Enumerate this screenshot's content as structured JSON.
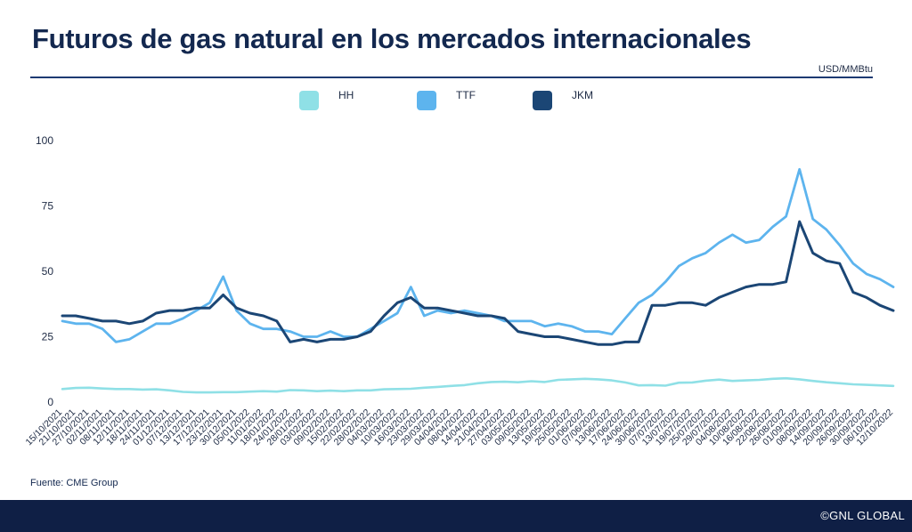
{
  "header": {
    "title": "Futuros de gas natural en los mercados internacionales",
    "unit": "USD/MMBtu"
  },
  "source": "Fuente: CME Group",
  "footer": {
    "copyright": "©GNL GLOBAL"
  },
  "colors": {
    "HH": "#8fe0e6",
    "TTF": "#5db4ee",
    "JKM": "#1b4675",
    "title": "#13284f",
    "footer": "#0f1f45"
  },
  "chart_data": {
    "type": "line",
    "title": "Futuros de gas natural en los mercados internacionales",
    "xlabel": "",
    "ylabel": "USD/MMBtu",
    "ylim": [
      0,
      100
    ],
    "yticks": [
      0,
      25,
      50,
      75,
      100
    ],
    "grid": false,
    "legend_position": "top",
    "x_tick_labels": [
      "15/10/2021",
      "21/10/2021",
      "27/10/2021",
      "02/11/2021",
      "08/11/2021",
      "12/11/2021",
      "18/11/2021",
      "24/11/2021",
      "01/12/2021",
      "07/12/2021",
      "13/12/2021",
      "17/12/2021",
      "23/12/2021",
      "30/12/2021",
      "05/01/2022",
      "11/01/2022",
      "18/01/2022",
      "24/01/2022",
      "28/01/2022",
      "03/02/2022",
      "09/02/2022",
      "15/02/2022",
      "22/02/2022",
      "28/02/2022",
      "04/03/2022",
      "10/03/2022",
      "16/03/2022",
      "23/03/2022",
      "29/03/2022",
      "04/04/2022",
      "08/04/2022",
      "14/04/2022",
      "21/04/2022",
      "27/04/2022",
      "03/05/2022",
      "09/05/2022",
      "13/05/2022",
      "19/05/2022",
      "25/05/2022",
      "01/06/2022",
      "07/06/2022",
      "13/06/2022",
      "17/06/2022",
      "24/06/2022",
      "30/06/2022",
      "07/07/2022",
      "13/07/2022",
      "19/07/2022",
      "25/07/2022",
      "29/07/2022",
      "04/08/2022",
      "10/08/2022",
      "16/08/2022",
      "22/08/2022",
      "26/08/2022",
      "01/09/2022",
      "08/09/2022",
      "14/09/2022",
      "20/09/2022",
      "26/09/2022",
      "30/09/2022",
      "06/10/2022",
      "12/10/2022"
    ],
    "x": [
      0,
      2,
      4,
      6,
      8,
      10,
      12,
      14,
      16,
      18,
      20,
      22,
      24,
      26,
      28,
      30,
      32,
      34,
      36,
      38,
      40,
      42,
      44,
      46,
      48,
      50,
      52,
      54,
      56,
      58,
      60,
      62,
      64,
      66,
      68,
      70,
      72,
      74,
      76,
      78,
      80,
      82,
      84,
      86,
      88,
      90,
      92,
      94,
      96,
      98,
      100,
      102,
      104,
      106,
      108,
      110,
      112,
      114,
      116,
      118,
      120,
      122,
      124
    ],
    "series": [
      {
        "name": "HH",
        "values": [
          5.0,
          5.4,
          5.5,
          5.2,
          5.0,
          5.0,
          4.8,
          4.9,
          4.5,
          3.9,
          3.7,
          3.7,
          3.8,
          3.8,
          4.0,
          4.2,
          4.0,
          4.6,
          4.5,
          4.2,
          4.4,
          4.2,
          4.5,
          4.5,
          4.9,
          5.0,
          5.1,
          5.5,
          5.8,
          6.2,
          6.5,
          7.2,
          7.7,
          7.8,
          7.6,
          8.0,
          7.7,
          8.5,
          8.7,
          8.9,
          8.7,
          8.3,
          7.5,
          6.4,
          6.5,
          6.3,
          7.4,
          7.5,
          8.2,
          8.6,
          8.1,
          8.3,
          8.5,
          8.9,
          9.1,
          8.7,
          8.1,
          7.6,
          7.2,
          6.8,
          6.6,
          6.4,
          6.2
        ]
      },
      {
        "name": "TTF",
        "values": [
          31,
          30,
          30,
          28,
          23,
          24,
          27,
          30,
          30,
          32,
          35,
          38,
          48,
          35,
          30,
          28,
          28,
          27,
          25,
          25,
          27,
          25,
          25,
          28,
          31,
          34,
          44,
          33,
          35,
          34,
          35,
          34,
          33,
          31,
          31,
          31,
          29,
          30,
          29,
          27,
          27,
          26,
          32,
          38,
          41,
          46,
          52,
          55,
          57,
          61,
          64,
          61,
          62,
          67,
          71,
          89,
          70,
          66,
          60,
          53,
          49,
          47,
          44
        ]
      },
      {
        "name": "JKM",
        "values": [
          33,
          33,
          32,
          31,
          31,
          30,
          31,
          34,
          35,
          35,
          36,
          36,
          41,
          36,
          34,
          33,
          31,
          23,
          24,
          23,
          24,
          24,
          25,
          27,
          33,
          38,
          40,
          36,
          36,
          35,
          34,
          33,
          33,
          32,
          27,
          26,
          25,
          25,
          24,
          23,
          22,
          22,
          23,
          23,
          37,
          37,
          38,
          38,
          37,
          40,
          42,
          44,
          45,
          45,
          46,
          69,
          57,
          54,
          53,
          42,
          40,
          37,
          35
        ]
      }
    ]
  }
}
